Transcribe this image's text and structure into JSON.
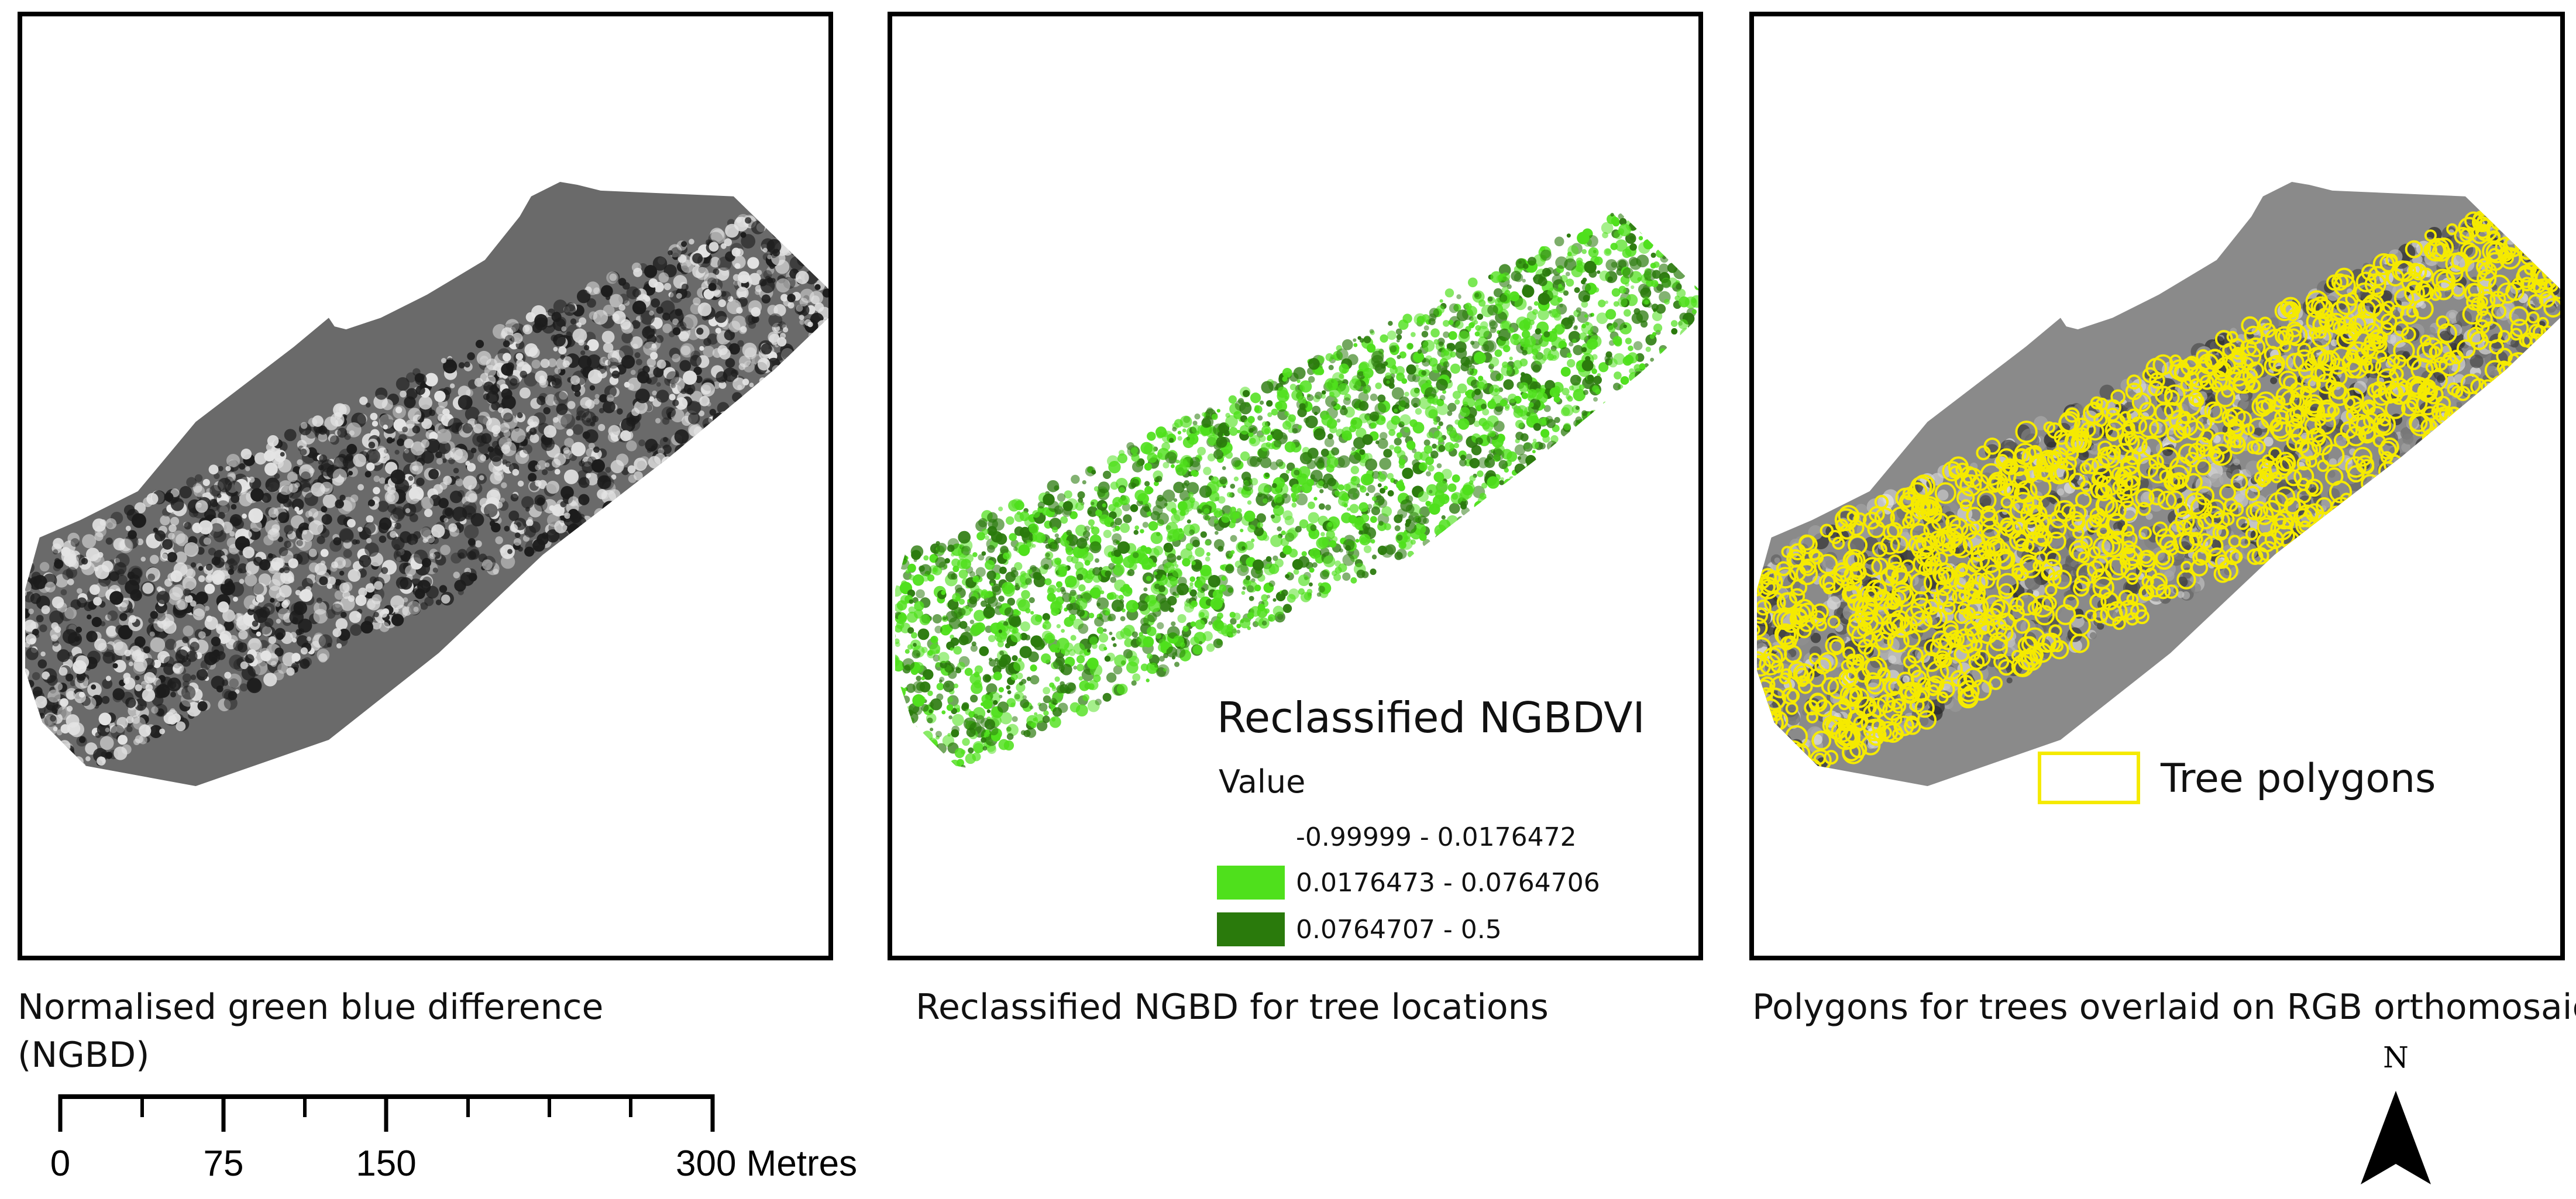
{
  "panels": [
    {
      "caption_line1": "Normalised green blue difference",
      "caption_line2": "(NGBD)",
      "colors": {
        "base": "#6a6a6a",
        "light": "#e4e4e4",
        "dark": "#1c1c1c"
      }
    },
    {
      "caption": "Reclassified NGBD for tree locations",
      "colors": {
        "light": "#4fe01c",
        "dark": "#2a7a0c"
      }
    },
    {
      "caption": "Polygons for trees overlaid on RGB orthomosaic",
      "colors": {
        "base": "#8a8a8a",
        "polygon": "#f5ea00"
      }
    }
  ],
  "legend_ngbdvi": {
    "title": "Reclassified NGBDVI",
    "subtitle": "Value",
    "classes": [
      {
        "label": "-0.99999 - 0.0176472",
        "color": "#ffffff"
      },
      {
        "label": "0.0176473 - 0.0764706",
        "color": "#4fe01c"
      },
      {
        "label": "0.0764707 - 0.5",
        "color": "#2a7a0c"
      }
    ]
  },
  "legend_trees": {
    "label": "Tree polygons",
    "color": "#f5ea00"
  },
  "scale_bar": {
    "labels": [
      "0",
      "75",
      "150",
      "300 Metres"
    ]
  },
  "north_arrow": {
    "label": "N"
  }
}
